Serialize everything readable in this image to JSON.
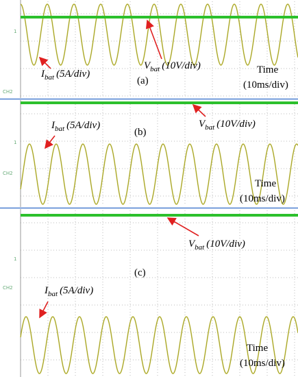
{
  "panels": [
    {
      "label": "(a)",
      "ch1_marker": "1",
      "ch2_marker": "CH2",
      "current": {
        "symbol": "I",
        "subscript": "bat",
        "scale": "(5A/div)"
      },
      "voltage": {
        "symbol": "V",
        "subscript": "bat",
        "scale": "(10V/div)"
      },
      "time": {
        "title": "Time",
        "scale": "(10ms/div)"
      }
    },
    {
      "label": "(b)",
      "ch1_marker": "1",
      "ch2_marker": "CH2",
      "current": {
        "symbol": "I",
        "subscript": "bat",
        "scale": "(5A/div)"
      },
      "voltage": {
        "symbol": "V",
        "subscript": "bat",
        "scale": "(10V/div)"
      },
      "time": {
        "title": "Time",
        "scale": "(10ms/div)"
      }
    },
    {
      "label": "(c)",
      "ch1_marker": "1",
      "ch2_marker": "CH2",
      "current": {
        "symbol": "I",
        "subscript": "bat",
        "scale": "(5A/div)"
      },
      "voltage": {
        "symbol": "V",
        "subscript": "bat",
        "scale": "(10V/div)"
      },
      "time": {
        "title": "Time",
        "scale": "(10ms/div)"
      }
    }
  ]
}
